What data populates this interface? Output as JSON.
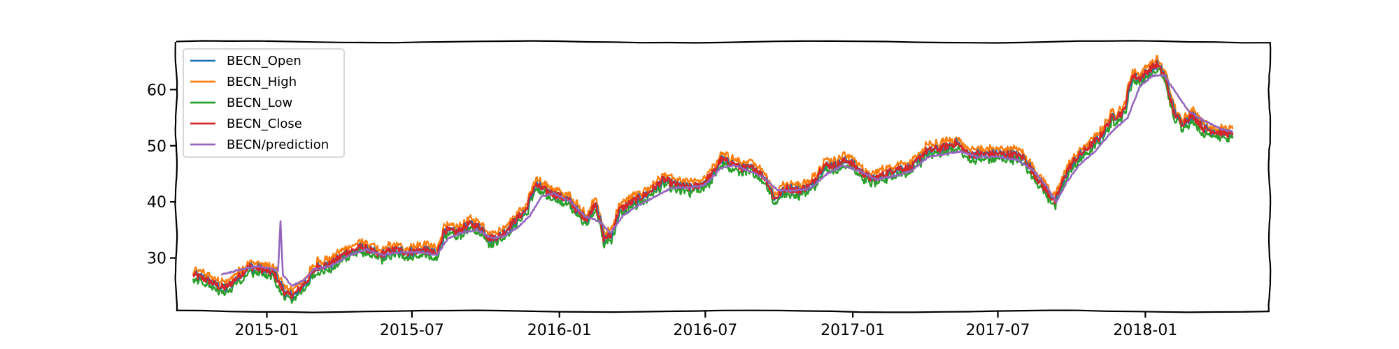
{
  "chart_data": {
    "type": "line",
    "title": "",
    "xlabel": "",
    "ylabel": "",
    "x_axis": {
      "type": "date",
      "range": [
        "2014-09-10",
        "2018-06-05"
      ],
      "ticks": [
        {
          "date": "2015-01-01",
          "label": "2015-01"
        },
        {
          "date": "2015-07-01",
          "label": "2015-07"
        },
        {
          "date": "2016-01-01",
          "label": "2016-01"
        },
        {
          "date": "2016-07-01",
          "label": "2016-07"
        },
        {
          "date": "2017-01-01",
          "label": "2017-01"
        },
        {
          "date": "2017-07-01",
          "label": "2017-07"
        },
        {
          "date": "2018-01-01",
          "label": "2018-01"
        }
      ]
    },
    "y_axis": {
      "range": [
        20.5,
        68.5
      ],
      "ticks": [
        30,
        40,
        50,
        60
      ]
    },
    "grid": false,
    "legend_placement": "top-left",
    "style": "xkcd-sketch",
    "series": [
      {
        "name": "BECN_Open",
        "color": "#1f77b4"
      },
      {
        "name": "BECN_High",
        "color": "#ff7f0e"
      },
      {
        "name": "BECN_Low",
        "color": "#2ca02c"
      },
      {
        "name": "BECN_Close",
        "color": "#d62728"
      },
      {
        "name": "BECN/prediction",
        "color": "#9467bd"
      }
    ],
    "close_keypoints": [
      [
        "2014-10-01",
        27.0
      ],
      [
        "2014-10-20",
        26.0
      ],
      [
        "2014-11-01",
        25.0
      ],
      [
        "2014-11-10",
        24.6
      ],
      [
        "2014-11-25",
        26.5
      ],
      [
        "2014-12-10",
        28.5
      ],
      [
        "2014-12-25",
        28.0
      ],
      [
        "2015-01-10",
        27.2
      ],
      [
        "2015-01-20",
        24.5
      ],
      [
        "2015-01-27",
        23.3
      ],
      [
        "2015-02-05",
        23.6
      ],
      [
        "2015-02-20",
        26.0
      ],
      [
        "2015-03-05",
        28.5
      ],
      [
        "2015-03-20",
        28.8
      ],
      [
        "2015-04-10",
        31.0
      ],
      [
        "2015-05-01",
        32.0
      ],
      [
        "2015-05-20",
        30.5
      ],
      [
        "2015-06-10",
        31.5
      ],
      [
        "2015-06-25",
        31.0
      ],
      [
        "2015-07-15",
        31.5
      ],
      [
        "2015-08-01",
        30.5
      ],
      [
        "2015-08-10",
        35.0
      ],
      [
        "2015-08-25",
        34.5
      ],
      [
        "2015-09-10",
        36.0
      ],
      [
        "2015-09-25",
        35.5
      ],
      [
        "2015-10-05",
        33.5
      ],
      [
        "2015-10-20",
        34.0
      ],
      [
        "2015-11-05",
        36.5
      ],
      [
        "2015-11-20",
        38.5
      ],
      [
        "2015-12-01",
        43.0
      ],
      [
        "2015-12-15",
        42.0
      ],
      [
        "2016-01-01",
        41.0
      ],
      [
        "2016-01-15",
        40.0
      ],
      [
        "2016-01-25",
        38.0
      ],
      [
        "2016-02-05",
        37.0
      ],
      [
        "2016-02-15",
        40.0
      ],
      [
        "2016-02-25",
        33.5
      ],
      [
        "2016-03-05",
        34.0
      ],
      [
        "2016-03-15",
        38.5
      ],
      [
        "2016-04-01",
        40.0
      ],
      [
        "2016-04-20",
        41.5
      ],
      [
        "2016-05-10",
        44.0
      ],
      [
        "2016-05-25",
        43.0
      ],
      [
        "2016-06-10",
        42.5
      ],
      [
        "2016-06-25",
        43.0
      ],
      [
        "2016-07-10",
        45.0
      ],
      [
        "2016-07-20",
        47.5
      ],
      [
        "2016-08-01",
        47.0
      ],
      [
        "2016-08-15",
        46.0
      ],
      [
        "2016-09-01",
        46.0
      ],
      [
        "2016-09-15",
        44.0
      ],
      [
        "2016-09-25",
        40.5
      ],
      [
        "2016-10-10",
        42.5
      ],
      [
        "2016-10-25",
        42.0
      ],
      [
        "2016-11-10",
        43.0
      ],
      [
        "2016-11-25",
        46.5
      ],
      [
        "2016-12-10",
        46.5
      ],
      [
        "2016-12-25",
        47.5
      ],
      [
        "2017-01-10",
        45.5
      ],
      [
        "2017-01-25",
        44.0
      ],
      [
        "2017-02-10",
        45.0
      ],
      [
        "2017-02-25",
        46.0
      ],
      [
        "2017-03-15",
        46.0
      ],
      [
        "2017-04-01",
        49.0
      ],
      [
        "2017-04-20",
        49.5
      ],
      [
        "2017-05-10",
        50.5
      ],
      [
        "2017-05-25",
        48.5
      ],
      [
        "2017-06-10",
        48.5
      ],
      [
        "2017-06-25",
        48.5
      ],
      [
        "2017-07-15",
        48.5
      ],
      [
        "2017-08-01",
        48.0
      ],
      [
        "2017-08-15",
        45.0
      ],
      [
        "2017-08-25",
        43.0
      ],
      [
        "2017-09-10",
        40.0
      ],
      [
        "2017-09-25",
        45.5
      ],
      [
        "2017-10-05",
        47.5
      ],
      [
        "2017-10-20",
        49.5
      ],
      [
        "2017-11-05",
        51.5
      ],
      [
        "2017-11-20",
        55.0
      ],
      [
        "2017-12-05",
        56.0
      ],
      [
        "2017-12-15",
        62.5
      ],
      [
        "2017-12-25",
        62.0
      ],
      [
        "2018-01-05",
        63.5
      ],
      [
        "2018-01-15",
        64.5
      ],
      [
        "2018-01-25",
        62.5
      ],
      [
        "2018-02-05",
        56.0
      ],
      [
        "2018-02-15",
        54.0
      ],
      [
        "2018-03-01",
        55.5
      ],
      [
        "2018-03-15",
        53.0
      ],
      [
        "2018-04-01",
        52.5
      ],
      [
        "2018-04-20",
        52.0
      ]
    ],
    "prediction_keypoints": [
      [
        "2014-11-05",
        27.0
      ],
      [
        "2014-12-01",
        28.0
      ],
      [
        "2014-12-20",
        28.5
      ],
      [
        "2015-01-10",
        28.0
      ],
      [
        "2015-01-15",
        27.8
      ],
      [
        "2015-01-18",
        36.5
      ],
      [
        "2015-01-21",
        27.0
      ],
      [
        "2015-02-01",
        25.0
      ],
      [
        "2015-02-15",
        26.0
      ],
      [
        "2015-03-01",
        28.0
      ],
      [
        "2015-03-20",
        28.5
      ],
      [
        "2015-04-15",
        30.5
      ],
      [
        "2015-05-05",
        31.5
      ],
      [
        "2015-05-25",
        30.5
      ],
      [
        "2015-06-15",
        31.0
      ],
      [
        "2015-07-15",
        31.0
      ],
      [
        "2015-08-01",
        30.5
      ],
      [
        "2015-08-15",
        33.5
      ],
      [
        "2015-09-01",
        34.5
      ],
      [
        "2015-09-20",
        35.0
      ],
      [
        "2015-10-10",
        33.5
      ],
      [
        "2015-10-25",
        34.0
      ],
      [
        "2015-11-10",
        35.5
      ],
      [
        "2015-11-25",
        37.5
      ],
      [
        "2015-12-10",
        41.0
      ],
      [
        "2015-12-25",
        41.5
      ],
      [
        "2016-01-15",
        40.0
      ],
      [
        "2016-02-01",
        37.5
      ],
      [
        "2016-02-20",
        36.5
      ],
      [
        "2016-03-05",
        34.5
      ],
      [
        "2016-03-20",
        37.5
      ],
      [
        "2016-04-10",
        39.5
      ],
      [
        "2016-05-01",
        41.0
      ],
      [
        "2016-05-20",
        42.5
      ],
      [
        "2016-06-10",
        42.5
      ],
      [
        "2016-07-01",
        43.0
      ],
      [
        "2016-07-20",
        46.0
      ],
      [
        "2016-08-05",
        46.5
      ],
      [
        "2016-08-25",
        45.5
      ],
      [
        "2016-09-10",
        44.5
      ],
      [
        "2016-09-30",
        42.0
      ],
      [
        "2016-10-20",
        42.0
      ],
      [
        "2016-11-10",
        42.5
      ],
      [
        "2016-11-30",
        45.0
      ],
      [
        "2016-12-20",
        46.5
      ],
      [
        "2017-01-10",
        45.5
      ],
      [
        "2017-01-30",
        44.0
      ],
      [
        "2017-02-20",
        44.5
      ],
      [
        "2017-03-15",
        45.5
      ],
      [
        "2017-04-05",
        48.0
      ],
      [
        "2017-04-25",
        48.5
      ],
      [
        "2017-05-15",
        49.0
      ],
      [
        "2017-06-05",
        48.0
      ],
      [
        "2017-06-30",
        48.0
      ],
      [
        "2017-07-25",
        47.5
      ],
      [
        "2017-08-15",
        45.5
      ],
      [
        "2017-09-01",
        42.5
      ],
      [
        "2017-09-12",
        40.0
      ],
      [
        "2017-09-25",
        43.5
      ],
      [
        "2017-10-10",
        46.5
      ],
      [
        "2017-10-30",
        49.0
      ],
      [
        "2017-11-20",
        52.5
      ],
      [
        "2017-12-10",
        55.0
      ],
      [
        "2017-12-25",
        60.5
      ],
      [
        "2018-01-10",
        62.5
      ],
      [
        "2018-01-25",
        62.5
      ],
      [
        "2018-02-10",
        59.0
      ],
      [
        "2018-02-25",
        56.0
      ],
      [
        "2018-03-15",
        54.5
      ],
      [
        "2018-04-05",
        53.0
      ],
      [
        "2018-04-20",
        52.5
      ]
    ]
  }
}
